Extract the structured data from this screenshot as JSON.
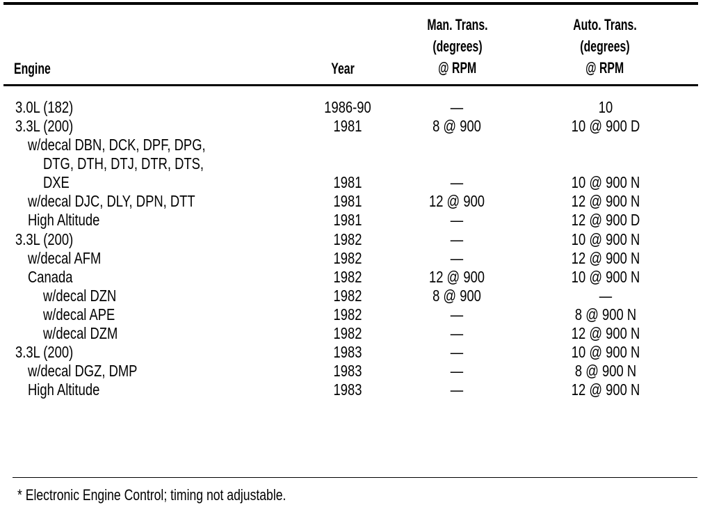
{
  "headers": {
    "engine": "Engine",
    "year": "Year",
    "man": [
      "Man. Trans.",
      "(degrees)",
      "@ RPM"
    ],
    "auto": [
      "Auto. Trans.",
      "(degrees)",
      "@ RPM"
    ]
  },
  "rows": [
    {
      "engine": "3.0L (182)",
      "indent": 0,
      "year": "1986-90",
      "man": "—",
      "auto": "10"
    },
    {
      "engine": "3.3L (200)",
      "indent": 0,
      "year": "1981",
      "man": "8 @ 900",
      "auto": "10 @ 900 D"
    },
    {
      "engine": "w/decal DBN, DCK, DPF, DPG,",
      "indent": 1,
      "year": "",
      "man": "",
      "auto": ""
    },
    {
      "engine": "DTG, DTH, DTJ, DTR, DTS,",
      "indent": 2,
      "year": "",
      "man": "",
      "auto": ""
    },
    {
      "engine": "DXE",
      "indent": 2,
      "year": "1981",
      "man": "—",
      "auto": "10 @ 900 N"
    },
    {
      "engine": "w/decal DJC, DLY, DPN, DTT",
      "indent": 1,
      "year": "1981",
      "man": "12 @ 900",
      "auto": "12 @ 900 N"
    },
    {
      "engine": "High Altitude",
      "indent": 1,
      "year": "1981",
      "man": "—",
      "auto": "12 @ 900 D"
    },
    {
      "engine": "3.3L (200)",
      "indent": 0,
      "year": "1982",
      "man": "—",
      "auto": "10 @ 900 N"
    },
    {
      "engine": "w/decal AFM",
      "indent": 1,
      "year": "1982",
      "man": "—",
      "auto": "12 @ 900 N"
    },
    {
      "engine": "Canada",
      "indent": 1,
      "year": "1982",
      "man": "12 @ 900",
      "auto": "10 @ 900 N"
    },
    {
      "engine": "w/decal DZN",
      "indent": 2,
      "year": "1982",
      "man": "8 @ 900",
      "auto": "—"
    },
    {
      "engine": "w/decal APE",
      "indent": 2,
      "year": "1982",
      "man": "—",
      "auto": "8 @ 900 N"
    },
    {
      "engine": "w/decal DZM",
      "indent": 2,
      "year": "1982",
      "man": "—",
      "auto": "12 @ 900 N"
    },
    {
      "engine": "3.3L (200)",
      "indent": 0,
      "year": "1983",
      "man": "—",
      "auto": "10 @ 900 N"
    },
    {
      "engine": "w/decal DGZ, DMP",
      "indent": 1,
      "year": "1983",
      "man": "—",
      "auto": "8 @ 900 N"
    },
    {
      "engine": "High Altitude",
      "indent": 1,
      "year": "1983",
      "man": "—",
      "auto": "12 @ 900 N"
    }
  ],
  "footnote": "* Electronic Engine Control; timing not adjustable."
}
